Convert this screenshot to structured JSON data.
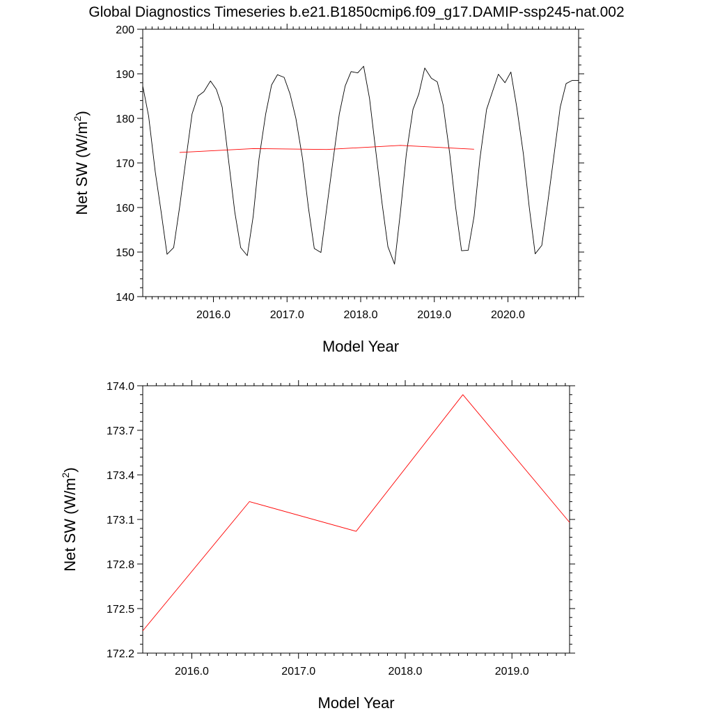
{
  "figure_title": "Global Diagnostics Timeseries b.e21.B1850cmip6.f09_g17.DAMIP-ssp245-nat.002",
  "chart_data": [
    {
      "type": "line",
      "xlabel": "Model Year",
      "ylabel": "Net SW (W/m",
      "ylabel_sup": "2",
      "ylabel_close": ")",
      "xlim": [
        2015.04,
        2020.96
      ],
      "ylim": [
        140,
        200
      ],
      "xticks": [
        2016.0,
        2017.0,
        2018.0,
        2019.0,
        2020.0
      ],
      "xtick_labels": [
        "2016.0",
        "2017.0",
        "2018.0",
        "2019.0",
        "2020.0"
      ],
      "yticks": [
        140,
        150,
        160,
        170,
        180,
        190,
        200
      ],
      "ytick_labels": [
        "140",
        "150",
        "160",
        "170",
        "180",
        "190",
        "200"
      ],
      "grid": false,
      "series": [
        {
          "color": "#000000",
          "x": [
            2015.04,
            2015.12,
            2015.21,
            2015.29,
            2015.37,
            2015.46,
            2015.54,
            2015.62,
            2015.71,
            2015.79,
            2015.87,
            2015.96,
            2016.04,
            2016.12,
            2016.21,
            2016.29,
            2016.37,
            2016.46,
            2016.54,
            2016.62,
            2016.71,
            2016.79,
            2016.87,
            2016.96,
            2017.04,
            2017.12,
            2017.21,
            2017.29,
            2017.37,
            2017.46,
            2017.54,
            2017.62,
            2017.71,
            2017.79,
            2017.87,
            2017.96,
            2018.04,
            2018.12,
            2018.21,
            2018.29,
            2018.37,
            2018.46,
            2018.54,
            2018.62,
            2018.71,
            2018.79,
            2018.87,
            2018.96,
            2019.04,
            2019.12,
            2019.21,
            2019.29,
            2019.37,
            2019.46,
            2019.54,
            2019.62,
            2019.71,
            2019.79,
            2019.87,
            2019.96,
            2020.04,
            2020.12,
            2020.21,
            2020.29,
            2020.37,
            2020.46,
            2020.54,
            2020.62,
            2020.71,
            2020.79,
            2020.87,
            2020.96
          ],
          "y": [
            187.3,
            180.5,
            168.0,
            159.0,
            149.5,
            151.0,
            160.0,
            170.0,
            181.0,
            185.0,
            186.0,
            188.4,
            186.5,
            182.5,
            170.0,
            159.0,
            151.0,
            149.2,
            158.0,
            171.0,
            181.0,
            187.5,
            189.8,
            189.2,
            185.5,
            180.0,
            171.0,
            160.0,
            150.8,
            149.9,
            160.0,
            170.0,
            181.0,
            187.3,
            190.5,
            190.2,
            191.7,
            184.5,
            172.0,
            161.0,
            151.2,
            147.3,
            159.0,
            172.0,
            182.0,
            185.5,
            191.3,
            189.0,
            188.2,
            183.0,
            172.0,
            160.0,
            150.3,
            150.4,
            158.0,
            171.0,
            182.0,
            186.0,
            189.9,
            188.0,
            190.4,
            182.5,
            172.0,
            160.0,
            149.6,
            151.5,
            161.0,
            171.0,
            182.5,
            187.8,
            188.5,
            188.5
          ]
        },
        {
          "color": "#ff0000",
          "x": [
            2015.54,
            2016.54,
            2017.54,
            2018.54,
            2019.54
          ],
          "y": [
            172.35,
            173.22,
            173.02,
            173.94,
            173.08
          ]
        }
      ]
    },
    {
      "type": "line",
      "xlabel": "Model Year",
      "ylabel": "Net SW (W/m",
      "ylabel_sup": "2",
      "ylabel_close": ")",
      "xlim": [
        2015.54,
        2019.54
      ],
      "ylim": [
        172.2,
        174.0
      ],
      "xticks": [
        2016.0,
        2017.0,
        2018.0,
        2019.0
      ],
      "xtick_labels": [
        "2016.0",
        "2017.0",
        "2018.0",
        "2019.0"
      ],
      "yticks": [
        172.2,
        172.5,
        172.8,
        173.1,
        173.4,
        173.7,
        174.0
      ],
      "ytick_labels": [
        "172.2",
        "172.5",
        "172.8",
        "173.1",
        "173.4",
        "173.7",
        "174.0"
      ],
      "grid": false,
      "series": [
        {
          "color": "#ff0000",
          "x": [
            2015.54,
            2016.54,
            2017.54,
            2018.54,
            2019.54
          ],
          "y": [
            172.35,
            173.22,
            173.02,
            173.94,
            173.08
          ]
        }
      ]
    }
  ]
}
